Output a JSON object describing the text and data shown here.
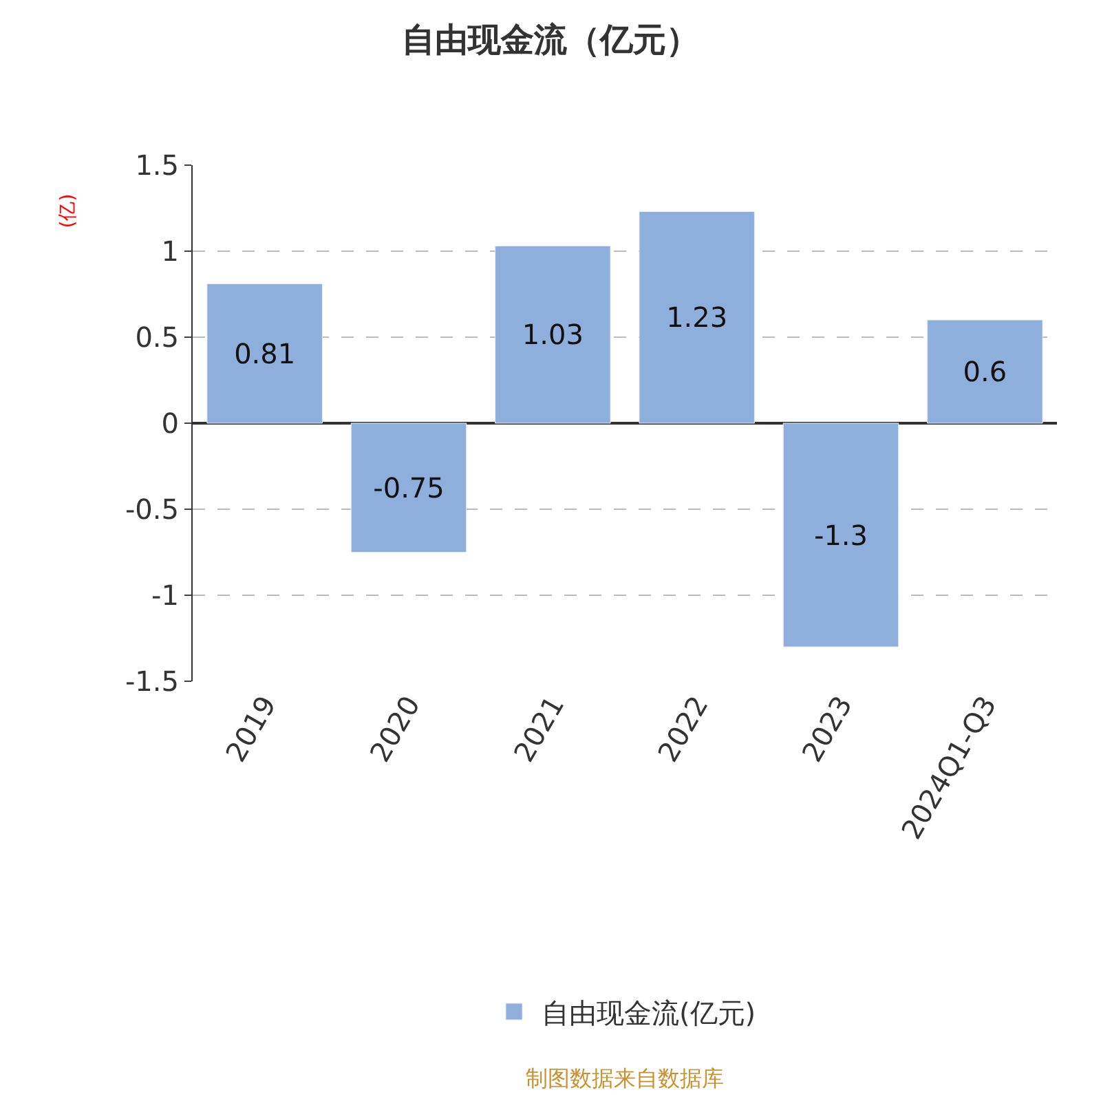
{
  "chart_data": {
    "type": "bar",
    "title": "自由现金流（亿元）",
    "ylabel": "(亿)",
    "categories": [
      "2019",
      "2020",
      "2021",
      "2022",
      "2023",
      "2024Q1-Q3"
    ],
    "series": [
      {
        "name": "自由现金流(亿元)",
        "color": "#8eaedb",
        "values": [
          0.81,
          -0.75,
          1.03,
          1.23,
          -1.3,
          0.6
        ]
      }
    ],
    "ylim": [
      -1.5,
      1.5
    ],
    "yticks": [
      -1.5,
      -1,
      -0.5,
      0,
      0.5,
      1,
      1.5
    ],
    "grid": "y",
    "legend": "bottom",
    "data_labels": true,
    "annotations": [
      "制图数据来自数据库"
    ]
  }
}
